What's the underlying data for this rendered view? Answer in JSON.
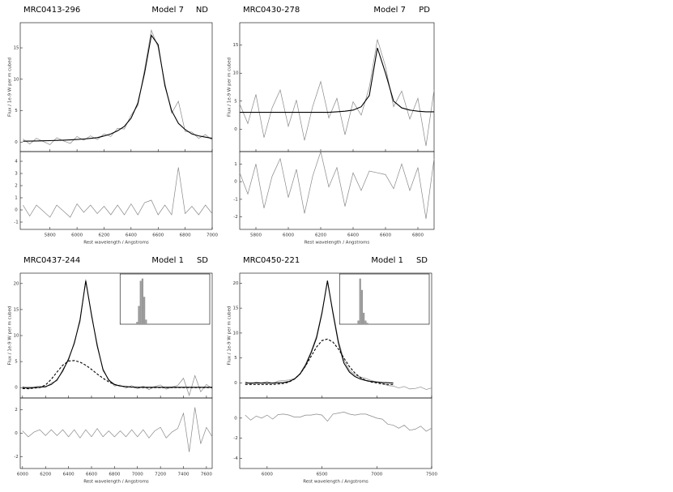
{
  "chart_data": [
    {
      "type": "line",
      "title": "MRC0413-296",
      "model": "Model 7",
      "class": "ND",
      "xlabel": "Rest wavelength / Angstroms",
      "ylabel": "Flux / 1e-9 W per m cubed",
      "x": [
        5600,
        5650,
        5700,
        5750,
        5800,
        5850,
        5900,
        5950,
        6000,
        6050,
        6100,
        6150,
        6200,
        6250,
        6300,
        6350,
        6400,
        6450,
        6500,
        6550,
        6600,
        6650,
        6700,
        6750,
        6800,
        6850,
        6900,
        6950,
        7000
      ],
      "xlim": [
        5580,
        7000
      ],
      "xticks": [
        5800,
        6000,
        6200,
        6400,
        6600,
        6800,
        7000
      ],
      "ylim": [
        -1.5,
        19
      ],
      "yticks": [
        0,
        5,
        10,
        15
      ],
      "series": [
        {
          "color": "#888888",
          "dash": false,
          "values": [
            0.5,
            -0.3,
            0.6,
            0.1,
            -0.4,
            0.7,
            0.2,
            -0.2,
            0.9,
            0.3,
            1.0,
            0.4,
            1.3,
            0.9,
            2.2,
            2.1,
            4.3,
            5.8,
            11.6,
            17.8,
            15.1,
            9.4,
            4.6,
            6.5,
            1.7,
            1.6,
            0.6,
            1.2,
            0.3
          ]
        },
        {
          "color": "#000000",
          "dash": false,
          "values": [
            0.15,
            0.17,
            0.19,
            0.22,
            0.24,
            0.28,
            0.31,
            0.36,
            0.42,
            0.5,
            0.6,
            0.72,
            0.98,
            1.3,
            1.8,
            2.5,
            3.8,
            6.2,
            11,
            17,
            15.5,
            9,
            5,
            3,
            2,
            1.3,
            1,
            0.8,
            0.6
          ]
        }
      ],
      "residual": {
        "color": "#888888",
        "ylim": [
          -1.6,
          4.8
        ],
        "yticks": [
          -1,
          0,
          1,
          2,
          3,
          4
        ],
        "values": [
          0.4,
          -0.5,
          0.4,
          -0.1,
          -0.6,
          0.4,
          -0.1,
          -0.6,
          0.5,
          -0.2,
          0.4,
          -0.3,
          0.3,
          -0.4,
          0.4,
          -0.4,
          0.5,
          -0.4,
          0.6,
          0.8,
          -0.4,
          0.4,
          -0.4,
          3.5,
          -0.3,
          0.3,
          -0.4,
          0.4,
          -0.3
        ]
      }
    },
    {
      "type": "line",
      "title": "MRC0430-278",
      "model": "Model 7",
      "class": "PD",
      "xlabel": "Rest wavelength / Angstroms",
      "ylabel": "Flux / 1e-9 W per m cubed",
      "x": [
        5700,
        5750,
        5800,
        5850,
        5900,
        5950,
        6000,
        6050,
        6100,
        6150,
        6200,
        6250,
        6300,
        6350,
        6400,
        6450,
        6500,
        6550,
        6600,
        6650,
        6700,
        6750,
        6800,
        6850,
        6900
      ],
      "xlim": [
        5700,
        6900
      ],
      "xticks": [
        5800,
        6000,
        6200,
        6400,
        6600,
        6800
      ],
      "ylim": [
        -4,
        19
      ],
      "yticks": [
        0,
        5,
        10,
        15
      ],
      "series": [
        {
          "color": "#888888",
          "dash": false,
          "values": [
            4.5,
            1,
            6.2,
            -1.5,
            3.8,
            7,
            0.5,
            5.2,
            -2,
            4,
            8.5,
            2,
            5.5,
            -1,
            4.9,
            2.5,
            7.5,
            16,
            11.2,
            4,
            6.8,
            1.8,
            5.5,
            -3,
            7
          ]
        },
        {
          "color": "#000000",
          "dash": false,
          "values": [
            3,
            3,
            3,
            3,
            3,
            3,
            3,
            3,
            3,
            3,
            3,
            3,
            3.1,
            3.2,
            3.4,
            4,
            6,
            14.5,
            10,
            5,
            3.8,
            3.4,
            3.2,
            3.1,
            3.1
          ]
        }
      ],
      "residual": {
        "color": "#888888",
        "ylim": [
          -2.7,
          1.7
        ],
        "yticks": [
          -2,
          -1,
          0,
          1
        ],
        "values": [
          0.5,
          -0.7,
          1,
          -1.5,
          0.3,
          1.3,
          -0.9,
          0.7,
          -1.8,
          0.3,
          1.7,
          -0.3,
          0.8,
          -1.4,
          0.5,
          -0.5,
          0.6,
          0.5,
          0.4,
          -0.4,
          1,
          -0.5,
          0.8,
          -2.1,
          1.3
        ]
      }
    },
    {
      "type": "line",
      "title": "MRC0437-244",
      "model": "Model 1",
      "class": "SD",
      "xlabel": "Rest wavelength / Angstroms",
      "ylabel": "Flux / 1e-9 W per m cubed",
      "x": [
        6000,
        6050,
        6100,
        6150,
        6200,
        6250,
        6300,
        6350,
        6400,
        6450,
        6500,
        6550,
        6600,
        6650,
        6700,
        6750,
        6800,
        6850,
        6900,
        6950,
        7000,
        7050,
        7100,
        7150,
        7200,
        7250,
        7300,
        7350,
        7400,
        7450,
        7500,
        7550,
        7600,
        7650
      ],
      "xlim": [
        5980,
        7650
      ],
      "xticks": [
        6000,
        6200,
        6400,
        6600,
        6800,
        7000,
        7200,
        7400,
        7600
      ],
      "ylim": [
        -2,
        22
      ],
      "yticks": [
        0,
        5,
        10,
        15,
        20
      ],
      "series": [
        {
          "color": "#888888",
          "dash": false,
          "values": [
            0.2,
            -0.3,
            0.1,
            0.3,
            0,
            0.9,
            1.3,
            3.5,
            5.2,
            8.8,
            12.6,
            20.8,
            13.7,
            8.4,
            3.2,
            1.6,
            0.3,
            0.5,
            -0.1,
            0.4,
            -0.2,
            0.3,
            -0.4,
            0.2,
            0.5,
            -0.3,
            0.1,
            0.4,
            1.8,
            -1.5,
            2.3,
            -0.8,
            0.6,
            -0.2
          ]
        },
        {
          "color": "#000000",
          "dash": false,
          "values": [
            0,
            0,
            0,
            0.05,
            0.2,
            0.6,
            1.5,
            3.2,
            5.5,
            8.5,
            13,
            20.5,
            14,
            8,
            3.5,
            1.4,
            0.6,
            0.3,
            0.2,
            0.1,
            0.05,
            0.05,
            0.05,
            0.05,
            0.05,
            0.05,
            0.05,
            0.05,
            0.05,
            0.05,
            0.05,
            0.05,
            0.05,
            0.05
          ]
        },
        {
          "color": "#000000",
          "dash": true,
          "values": [
            -0.2,
            -0.2,
            -0.1,
            0,
            0.5,
            1.6,
            3,
            4.3,
            5.1,
            5.2,
            4.9,
            4.3,
            3.5,
            2.6,
            1.8,
            1.1,
            0.6,
            0.3,
            0.15,
            0.1,
            0,
            0,
            0,
            0,
            0,
            0,
            0,
            0,
            0,
            0,
            0,
            0,
            0,
            0
          ]
        }
      ],
      "residual": {
        "color": "#888888",
        "ylim": [
          -3,
          3
        ],
        "yticks": [
          -2,
          0,
          2
        ],
        "values": [
          0.2,
          -0.3,
          0.1,
          0.3,
          -0.2,
          0.3,
          -0.2,
          0.3,
          -0.3,
          0.3,
          -0.4,
          0.3,
          -0.3,
          0.4,
          -0.3,
          0.2,
          -0.3,
          0.2,
          -0.3,
          0.3,
          -0.3,
          0.3,
          -0.4,
          0.2,
          0.5,
          -0.4,
          0.1,
          0.4,
          1.7,
          -1.6,
          2.2,
          -0.9,
          0.5,
          -0.3
        ]
      },
      "inset": {
        "color": "#999999",
        "xlim": [
          0,
          1
        ],
        "ylim": [
          0,
          110
        ],
        "bins": [
          0.18,
          0.2,
          0.22,
          0.24,
          0.26,
          0.28,
          0.3
        ],
        "counts": [
          5,
          40,
          95,
          100,
          60,
          10
        ]
      }
    },
    {
      "type": "line",
      "title": "MRC0450-221",
      "model": "Model 1",
      "class": "SD",
      "xlabel": "Rest wavelength / Angstroms",
      "ylabel": "Flux / 1e-9 W per m cubed",
      "x": [
        5800,
        5850,
        5900,
        5950,
        6000,
        6050,
        6100,
        6150,
        6200,
        6250,
        6300,
        6350,
        6400,
        6450,
        6500,
        6550,
        6600,
        6650,
        6700,
        6750,
        6800,
        6850,
        6900,
        6950,
        7000,
        7050,
        7100,
        7150,
        7200,
        7250,
        7300,
        7350,
        7400,
        7450,
        7500
      ],
      "xlim": [
        5750,
        7500
      ],
      "xticks": [
        6000,
        6500,
        7000,
        7500
      ],
      "ylim": [
        -3,
        22
      ],
      "yticks": [
        0,
        5,
        10,
        15,
        20
      ],
      "series": [
        {
          "color": "#888888",
          "dash": false,
          "values": [
            0.3,
            -0.2,
            0.2,
            0,
            0.3,
            -0.1,
            0.4,
            0.5,
            0.6,
            0.9,
            1.9,
            3.8,
            6.3,
            9.4,
            14.3,
            20.2,
            14.4,
            8.5,
            4.6,
            2.6,
            1.6,
            1.2,
            0.9,
            0.5,
            0.2,
            0,
            -0.5,
            -0.6,
            -1,
            -0.7,
            -1.2,
            -1.1,
            -0.8,
            -1.3,
            -1
          ]
        },
        {
          "color": "#000000",
          "dash": false,
          "values": [
            0,
            0,
            0,
            0,
            0,
            0,
            0.05,
            0.1,
            0.3,
            0.8,
            1.8,
            3.5,
            6,
            9,
            14,
            20.5,
            14,
            8,
            4,
            2.2,
            1.3,
            0.8,
            0.5,
            0.3,
            0.2,
            0.1,
            0.05,
            0,
            null,
            null,
            null,
            null,
            null,
            null,
            null
          ]
        },
        {
          "color": "#000000",
          "dash": true,
          "values": [
            -0.3,
            -0.3,
            -0.3,
            -0.3,
            -0.3,
            -0.3,
            -0.2,
            -0.1,
            0.2,
            0.8,
            1.8,
            3.4,
            5.3,
            7.2,
            8.5,
            8.8,
            8.2,
            6.8,
            5,
            3.3,
            2,
            1.1,
            0.5,
            0.2,
            0,
            -0.2,
            -0.3,
            -0.3,
            null,
            null,
            null,
            null,
            null,
            null,
            null
          ]
        }
      ],
      "residual": {
        "color": "#888888",
        "ylim": [
          -5,
          2
        ],
        "yticks": [
          -4,
          -2,
          0
        ],
        "values": [
          0.3,
          -0.2,
          0.2,
          0,
          0.3,
          -0.1,
          0.35,
          0.4,
          0.3,
          0.1,
          0.1,
          0.3,
          0.3,
          0.4,
          0.3,
          -0.3,
          0.4,
          0.5,
          0.6,
          0.4,
          0.3,
          0.4,
          0.4,
          0.2,
          0,
          -0.1,
          -0.6,
          -0.7,
          -1,
          -0.7,
          -1.2,
          -1.1,
          -0.8,
          -1.3,
          -1
        ]
      },
      "inset": {
        "color": "#999999",
        "xlim": [
          0,
          1
        ],
        "ylim": [
          0,
          110
        ],
        "bins": [
          0.2,
          0.22,
          0.24,
          0.26,
          0.28,
          0.3,
          0.32
        ],
        "counts": [
          8,
          100,
          75,
          25,
          8,
          3
        ]
      }
    }
  ]
}
